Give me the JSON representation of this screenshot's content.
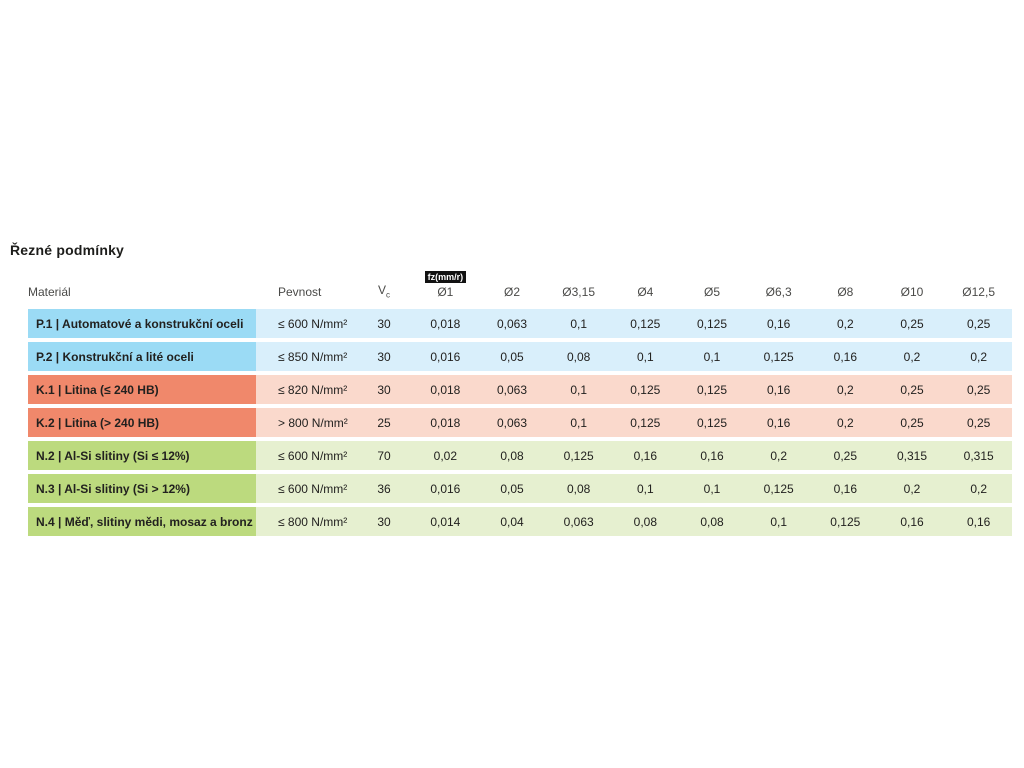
{
  "title": "Řezné podmínky",
  "table": {
    "headers": {
      "material": "Materiál",
      "strength": "Pevnost",
      "vc_main": "V",
      "vc_sub": "c",
      "fz_badge": "fz(mm/r)",
      "diameters": [
        "Ø1",
        "Ø2",
        "Ø3,15",
        "Ø4",
        "Ø5",
        "Ø6,3",
        "Ø8",
        "Ø10",
        "Ø12,5"
      ]
    },
    "group_colors": {
      "P": {
        "label_bg": "#9bdbf5",
        "value_bg": "#d9effb"
      },
      "K": {
        "label_bg": "#f0886b",
        "value_bg": "#fad9cc"
      },
      "N": {
        "label_bg": "#bcda7e",
        "value_bg": "#e6f0d0"
      }
    },
    "rows": [
      {
        "group": "P",
        "material": "P.1 | Automatové a konstrukční oceli",
        "strength": "≤ 600 N/mm²",
        "vc": "30",
        "fz": [
          "0,018",
          "0,063",
          "0,1",
          "0,125",
          "0,125",
          "0,16",
          "0,2",
          "0,25",
          "0,25"
        ]
      },
      {
        "group": "P",
        "material": "P.2 | Konstrukční a lité oceli",
        "strength": "≤ 850 N/mm²",
        "vc": "30",
        "fz": [
          "0,016",
          "0,05",
          "0,08",
          "0,1",
          "0,1",
          "0,125",
          "0,16",
          "0,2",
          "0,2"
        ]
      },
      {
        "group": "K",
        "material": "K.1 | Litina (≤ 240 HB)",
        "strength": "≤ 820 N/mm²",
        "vc": "30",
        "fz": [
          "0,018",
          "0,063",
          "0,1",
          "0,125",
          "0,125",
          "0,16",
          "0,2",
          "0,25",
          "0,25"
        ]
      },
      {
        "group": "K",
        "material": "K.2 | Litina (> 240 HB)",
        "strength": "> 800 N/mm²",
        "vc": "25",
        "fz": [
          "0,018",
          "0,063",
          "0,1",
          "0,125",
          "0,125",
          "0,16",
          "0,2",
          "0,25",
          "0,25"
        ]
      },
      {
        "group": "N",
        "material": "N.2 | Al-Si slitiny (Si ≤ 12%)",
        "strength": "≤ 600 N/mm²",
        "vc": "70",
        "fz": [
          "0,02",
          "0,08",
          "0,125",
          "0,16",
          "0,16",
          "0,2",
          "0,25",
          "0,315",
          "0,315"
        ]
      },
      {
        "group": "N",
        "material": "N.3 | Al-Si slitiny (Si > 12%)",
        "strength": "≤ 600 N/mm²",
        "vc": "36",
        "fz": [
          "0,016",
          "0,05",
          "0,08",
          "0,1",
          "0,1",
          "0,125",
          "0,16",
          "0,2",
          "0,2"
        ]
      },
      {
        "group": "N",
        "material": "N.4 | Měď, slitiny mědi, mosaz a bronz",
        "strength": "≤ 800 N/mm²",
        "vc": "30",
        "fz": [
          "0,014",
          "0,04",
          "0,063",
          "0,08",
          "0,08",
          "0,1",
          "0,125",
          "0,16",
          "0,16"
        ]
      }
    ]
  }
}
